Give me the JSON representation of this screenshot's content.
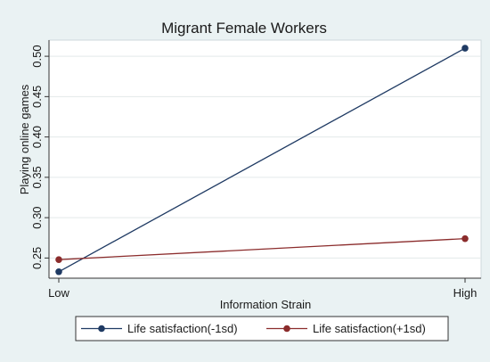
{
  "chart_data": {
    "type": "line",
    "title": "Migrant Female Workers",
    "xlabel": "Information Strain",
    "ylabel": "Playing online games",
    "categories": [
      "Low",
      "High"
    ],
    "ylim": [
      0.225,
      0.52
    ],
    "yticks": [
      "0.25",
      "0.30",
      "0.35",
      "0.40",
      "0.45",
      "0.50"
    ],
    "grid": true,
    "legend_position": "bottom",
    "series": [
      {
        "name": "Life satisfaction(-1sd)",
        "values": [
          0.233,
          0.51
        ],
        "color": "#1f3a63"
      },
      {
        "name": "Life satisfaction(+1sd)",
        "values": [
          0.248,
          0.274
        ],
        "color": "#8b2c2c"
      }
    ]
  }
}
